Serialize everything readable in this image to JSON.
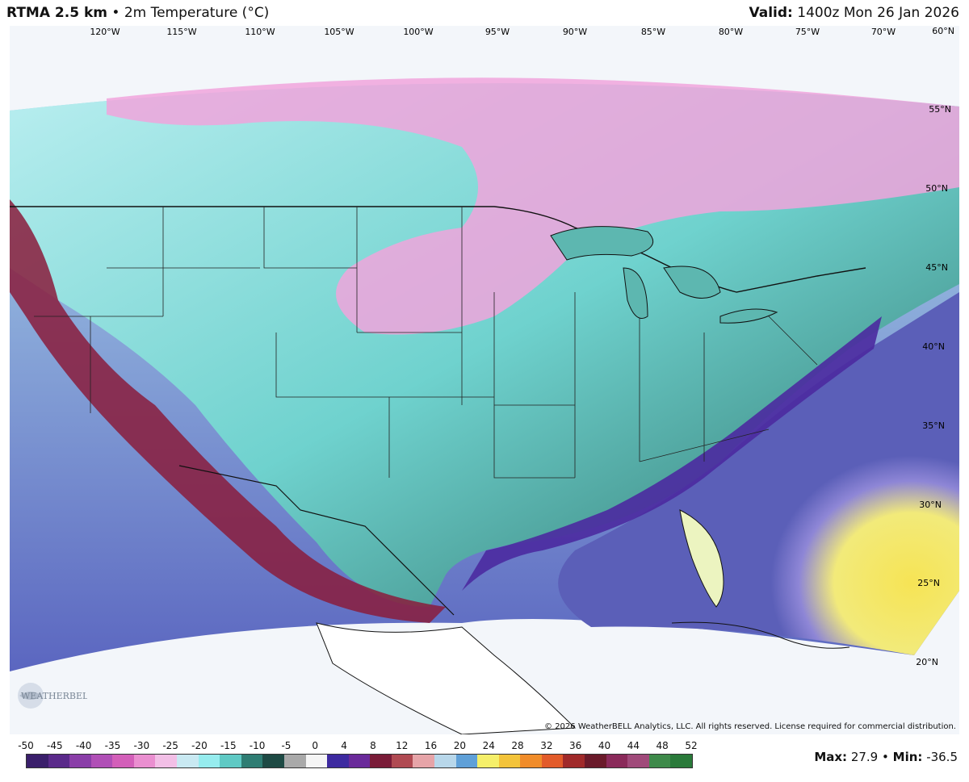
{
  "header": {
    "model": "RTMA 2.5 km",
    "separator": "•",
    "field": "2m Temperature (°C)",
    "valid_label": "Valid:",
    "valid_time": "1400z Mon 26 Jan 2026"
  },
  "map": {
    "lon_labels": [
      "120°W",
      "115°W",
      "110°W",
      "105°W",
      "100°W",
      "95°W",
      "90°W",
      "85°W",
      "80°W",
      "75°W",
      "70°W"
    ],
    "lat_labels": [
      "60°N",
      "55°N",
      "50°N",
      "45°N",
      "40°N",
      "35°N",
      "30°N",
      "25°N",
      "20°N"
    ],
    "copyright": "© 2026 WeatherBELL Analytics, LLC. All rights reserved. License required for commercial distribution.",
    "logo_text": "WEATHERBELL"
  },
  "colorbar": {
    "ticks": [
      "-50",
      "-45",
      "-40",
      "-35",
      "-30",
      "-25",
      "-20",
      "-15",
      "-10",
      "-5",
      "0",
      "4",
      "8",
      "12",
      "16",
      "20",
      "24",
      "28",
      "32",
      "36",
      "40",
      "44",
      "48",
      "52"
    ],
    "colors": [
      "#3a1f6b",
      "#5a2a8a",
      "#8a3ea8",
      "#b04fb6",
      "#d35fb9",
      "#ea8fd0",
      "#f2bfe6",
      "#c9e9f2",
      "#96ecee",
      "#5fc9c4",
      "#2f7d73",
      "#1e4a44",
      "#a9a9a9",
      "#f5f5f5",
      "#3d2aa0",
      "#6a2a9a",
      "#7a1c38",
      "#b04a52",
      "#e6a4a8",
      "#b8d7ea",
      "#5fa0d8",
      "#f5ef6a",
      "#f3c33a",
      "#f08c2a",
      "#e25b2a",
      "#a02a2a",
      "#6a1a2a",
      "#8a2a5a",
      "#a04a7a",
      "#3e8a4a",
      "#2a7a3a"
    ]
  },
  "stats": {
    "max_label": "Max:",
    "max_value": "27.9",
    "sep": "•",
    "min_label": "Min:",
    "min_value": "-36.5"
  }
}
